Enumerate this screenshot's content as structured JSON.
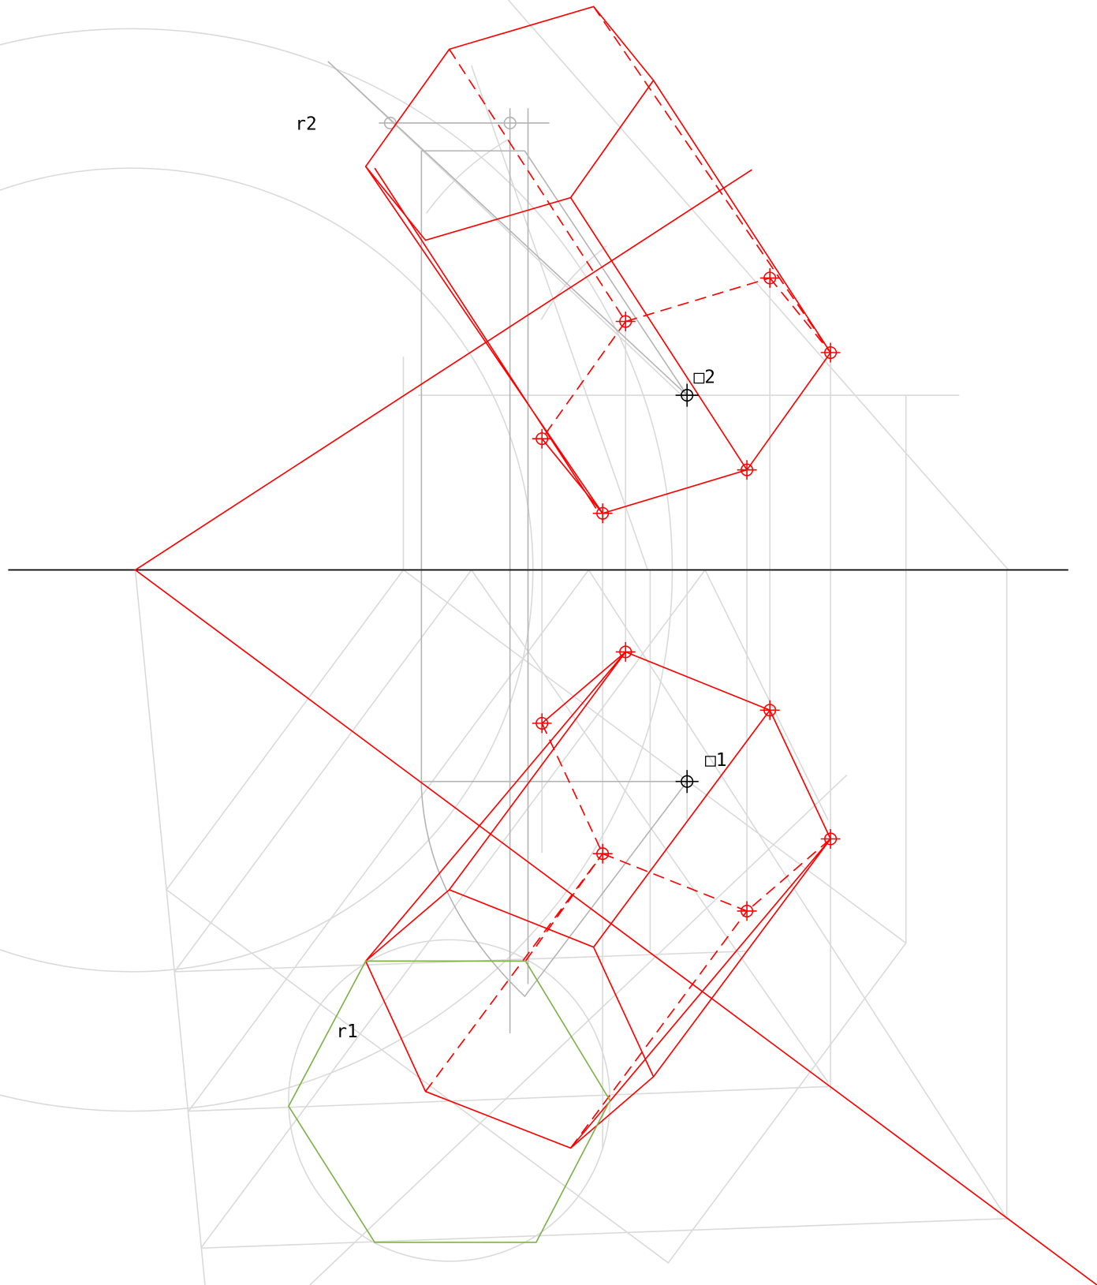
{
  "labels": {
    "r2": "r2",
    "p2": "□2",
    "p1": "□1",
    "r1": "r1"
  }
}
